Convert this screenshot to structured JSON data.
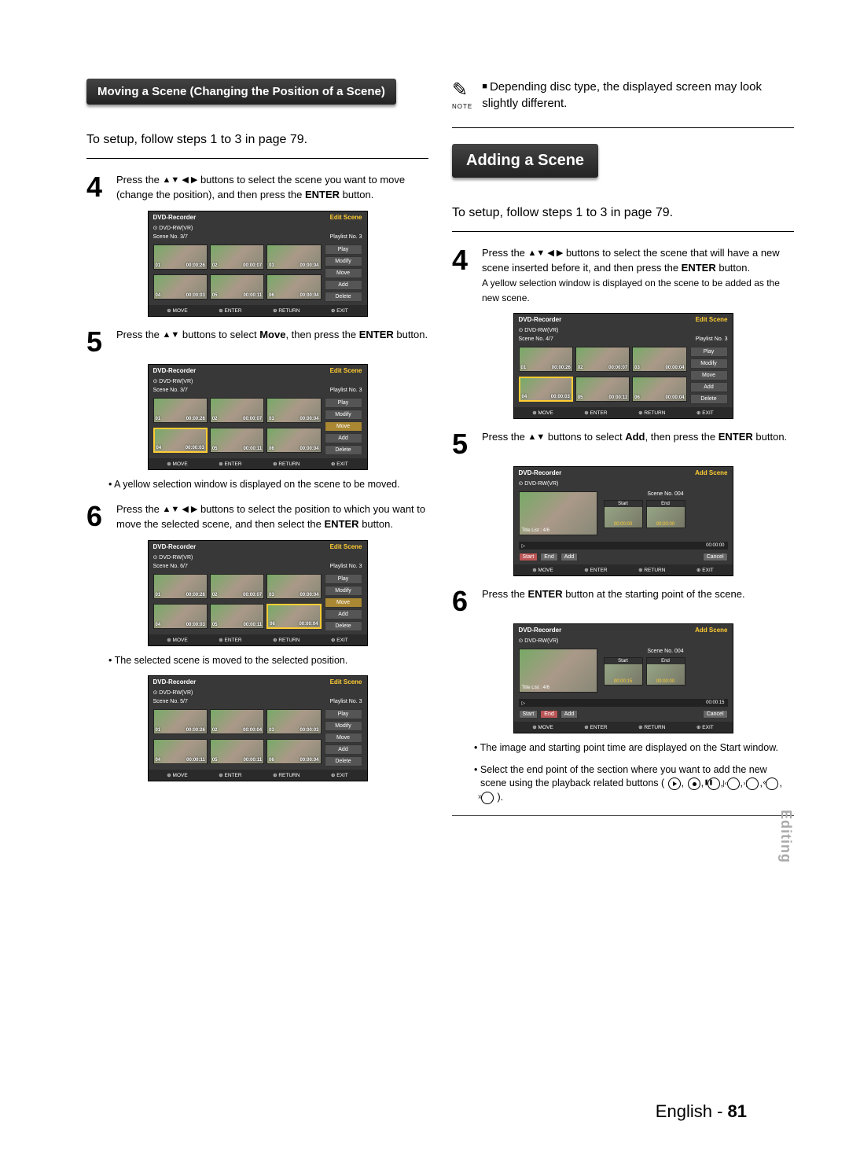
{
  "left": {
    "banner": "Moving a Scene (Changing the Position of a Scene)",
    "setup": "To setup, follow steps 1 to 3 in page 79.",
    "step4": {
      "num": "4",
      "text_a": "Press the ",
      "text_b": " buttons to select the scene you want to move (change the position), and then press the ",
      "text_c": "ENTER",
      "text_d": " button."
    },
    "step5": {
      "num": "5",
      "text_a": "Press the ",
      "text_b": " buttons to select ",
      "text_c": "Move",
      "text_d": ", then press the ",
      "text_e": "ENTER",
      "text_f": " button."
    },
    "bullet5": "A yellow selection window is displayed on the scene to be moved.",
    "step6": {
      "num": "6",
      "text_a": "Press the ",
      "text_b": " buttons to select the position to which you want to move the selected scene, and then select the ",
      "text_c": "ENTER",
      "text_d": " button."
    },
    "bullet6": "The selected scene is moved to the selected position."
  },
  "right": {
    "note": "Depending disc type, the displayed screen may look slightly different.",
    "note_label": "NOTE",
    "banner": "Adding a Scene",
    "setup": "To setup, follow steps 1 to 3 in page 79.",
    "step4": {
      "num": "4",
      "text_a": "Press the ",
      "text_b": " buttons to select the scene that will have a new scene inserted before it, and then press the ",
      "text_c": "ENTER",
      "text_d": " button.",
      "text_e": "A yellow selection window is displayed on the scene to be added as the new scene."
    },
    "step5": {
      "num": "5",
      "text_a": "Press the ",
      "text_b": " buttons to select ",
      "text_c": "Add",
      "text_d": ", then press the ",
      "text_e": "ENTER",
      "text_f": " button."
    },
    "step6": {
      "num": "6",
      "text_a": "Press the ",
      "text_b": "ENTER",
      "text_c": " button at the starting point of the scene."
    },
    "bullet6a": "The image and starting point time are displayed on the Start window.",
    "bullet6b_a": "Select the end point of the section where you want to add the new scene using the playback related buttons (",
    "bullet6b_b": ")."
  },
  "ss_edit": {
    "hdr_l": "DVD-Recorder",
    "hdr_r": "Edit Scene",
    "sub": "DVD-RW(VR)",
    "pl_label": "Playlist No.",
    "pl_no": "3",
    "btns": [
      "Play",
      "Modify",
      "Move",
      "Add",
      "Delete"
    ],
    "ftr": [
      "MOVE",
      "ENTER",
      "RETURN",
      "EXIT"
    ],
    "scenes": [
      {
        "scene": "Scene No.  3/7",
        "thumbs": [
          [
            "01",
            "00:00:26"
          ],
          [
            "02",
            "00:00:07"
          ],
          [
            "03",
            "00:00:04"
          ],
          [
            "04",
            "00:00:03"
          ],
          [
            "05",
            "00:00:11"
          ],
          [
            "06",
            "00:00:04"
          ]
        ],
        "hl": -1,
        "btn_hl": -1
      },
      {
        "scene": "Scene No.  3/7",
        "thumbs": [
          [
            "01",
            "00:00:26"
          ],
          [
            "02",
            "00:00:07"
          ],
          [
            "03",
            "00:00:04"
          ],
          [
            "04",
            "00:00:03"
          ],
          [
            "05",
            "00:00:11"
          ],
          [
            "06",
            "00:00:04"
          ]
        ],
        "hl": 3,
        "btn_hl": 2
      },
      {
        "scene": "Scene No.  6/7",
        "thumbs": [
          [
            "01",
            "00:00:26"
          ],
          [
            "02",
            "00:00:07"
          ],
          [
            "03",
            "00:00:04"
          ],
          [
            "04",
            "00:00:03"
          ],
          [
            "05",
            "00:00:11"
          ],
          [
            "06",
            "00:00:04"
          ]
        ],
        "hl": 5,
        "btn_hl": 2
      },
      {
        "scene": "Scene No.  5/7",
        "thumbs": [
          [
            "01",
            "00:00:26"
          ],
          [
            "02",
            "00:00:04"
          ],
          [
            "03",
            "00:00:03"
          ],
          [
            "04",
            "00:00:11"
          ],
          [
            "05",
            "00:00:11"
          ],
          [
            "06",
            "00:00:04"
          ]
        ],
        "hl": -1,
        "btn_hl": -1
      },
      {
        "scene": "Scene No.  4/7",
        "thumbs": [
          [
            "01",
            "00:00:26"
          ],
          [
            "02",
            "00:00:07"
          ],
          [
            "03",
            "00:00:04"
          ],
          [
            "04",
            "00:00:03"
          ],
          [
            "05",
            "00:00:11"
          ],
          [
            "06",
            "00:00:04"
          ]
        ],
        "hl": 3,
        "btn_hl": -1
      }
    ]
  },
  "ss_add": {
    "hdr_l": "DVD-Recorder",
    "hdr_r": "Add Scene",
    "sub": "DVD-RW(VR)",
    "scene_lbl": "Scene No. 004",
    "title": "Title List : 4/6",
    "labels": [
      "Start",
      "End"
    ],
    "btns": [
      "Start",
      "End",
      "Add"
    ],
    "cancel": "Cancel",
    "ftr": [
      "MOVE",
      "ENTER",
      "RETURN",
      "EXIT"
    ],
    "a": {
      "start": "00:00:00",
      "end": "00:00:00",
      "t": "00:00:00",
      "hl": 0
    },
    "b": {
      "start": "00:00:15",
      "end": "00:00:00",
      "t": "00:00:15",
      "hl": 1
    }
  },
  "sidetab": "Editing",
  "footer_a": "English - ",
  "footer_b": "81"
}
